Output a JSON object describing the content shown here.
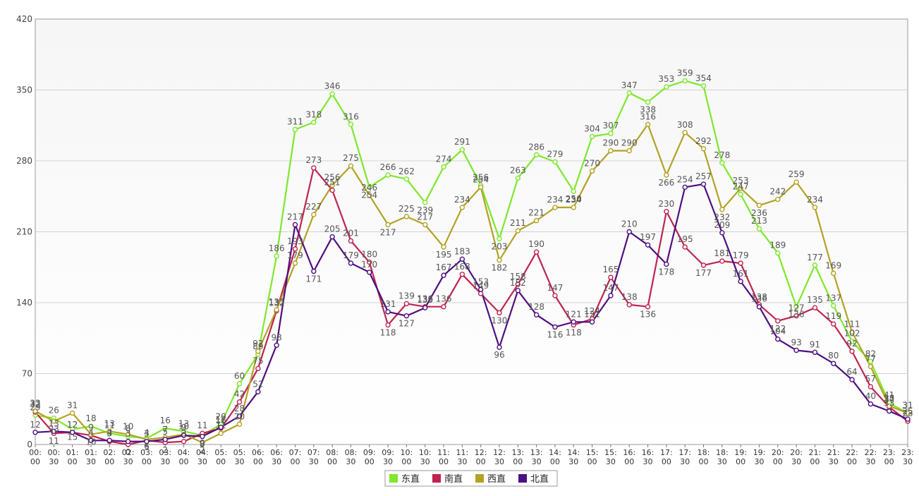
{
  "chart_data": {
    "type": "line",
    "title": "",
    "xlabel": "",
    "ylabel": "",
    "ylim": [
      0,
      420
    ],
    "yticks": [
      0,
      70,
      140,
      210,
      280,
      350,
      420
    ],
    "ytick_labels": [
      "0",
      "70",
      "140",
      "210",
      "280",
      "350",
      "420"
    ],
    "grid": "horizontal",
    "legend_position": "bottom-center",
    "categories": [
      {
        "top": "00:",
        "bottom": "00"
      },
      {
        "top": "00:",
        "bottom": "30"
      },
      {
        "top": "01:",
        "bottom": "00"
      },
      {
        "top": "01:",
        "bottom": "30"
      },
      {
        "top": "02:",
        "bottom": "00"
      },
      {
        "top": "02:",
        "bottom": "30"
      },
      {
        "top": "03:",
        "bottom": "00"
      },
      {
        "top": "03:",
        "bottom": "30"
      },
      {
        "top": "04:",
        "bottom": "00"
      },
      {
        "top": "04:",
        "bottom": "30"
      },
      {
        "top": "05:",
        "bottom": "00"
      },
      {
        "top": "05:",
        "bottom": "30"
      },
      {
        "top": "06:",
        "bottom": "00"
      },
      {
        "top": "06:",
        "bottom": "30"
      },
      {
        "top": "07:",
        "bottom": "00"
      },
      {
        "top": "07:",
        "bottom": "30"
      },
      {
        "top": "08:",
        "bottom": "00"
      },
      {
        "top": "08:",
        "bottom": "30"
      },
      {
        "top": "09:",
        "bottom": "00"
      },
      {
        "top": "09:",
        "bottom": "30"
      },
      {
        "top": "10:",
        "bottom": "00"
      },
      {
        "top": "10:",
        "bottom": "30"
      },
      {
        "top": "11:",
        "bottom": "00"
      },
      {
        "top": "11:",
        "bottom": "30"
      },
      {
        "top": "12:",
        "bottom": "00"
      },
      {
        "top": "12:",
        "bottom": "30"
      },
      {
        "top": "13:",
        "bottom": "00"
      },
      {
        "top": "13:",
        "bottom": "30"
      },
      {
        "top": "14:",
        "bottom": "00"
      },
      {
        "top": "14:",
        "bottom": "30"
      },
      {
        "top": "15:",
        "bottom": "00"
      },
      {
        "top": "15:",
        "bottom": "30"
      },
      {
        "top": "16:",
        "bottom": "00"
      },
      {
        "top": "16:",
        "bottom": "30"
      },
      {
        "top": "17:",
        "bottom": "00"
      },
      {
        "top": "17:",
        "bottom": "30"
      },
      {
        "top": "18:",
        "bottom": "00"
      },
      {
        "top": "18:",
        "bottom": "30"
      },
      {
        "top": "19:",
        "bottom": "00"
      },
      {
        "top": "19:",
        "bottom": "30"
      },
      {
        "top": "20:",
        "bottom": "00"
      },
      {
        "top": "20:",
        "bottom": "30"
      },
      {
        "top": "21:",
        "bottom": "00"
      },
      {
        "top": "21:",
        "bottom": "30"
      },
      {
        "top": "22:",
        "bottom": "00"
      },
      {
        "top": "22:",
        "bottom": "30"
      },
      {
        "top": "23:",
        "bottom": "00"
      },
      {
        "top": "23:",
        "bottom": "30"
      }
    ],
    "series": [
      {
        "name": "东直",
        "color": "#7ee82a",
        "values": [
          29,
          26,
          15,
          18,
          11,
          8,
          6,
          16,
          13,
          9,
          20,
          60,
          89,
          186,
          311,
          318,
          346,
          316,
          254,
          266,
          262,
          239,
          274,
          291,
          256,
          203,
          263,
          286,
          279,
          250,
          304,
          307,
          347,
          338,
          353,
          359,
          354,
          278,
          247,
          213,
          189,
          136,
          177,
          137,
          102,
          82,
          41,
          31
        ]
      },
      {
        "name": "南直",
        "color": "#c0234f",
        "values": [
          32,
          11,
          12,
          9,
          3,
          0,
          4,
          2,
          3,
          11,
          16,
          42,
          75,
          132,
          193,
          273,
          251,
          201,
          180,
          118,
          139,
          136,
          136,
          168,
          149,
          130,
          158,
          190,
          147,
          118,
          124,
          165,
          138,
          136,
          230,
          195,
          177,
          181,
          179,
          138,
          122,
          127,
          135,
          119,
          92,
          57,
          37,
          23
        ]
      },
      {
        "name": "西直",
        "color": "#b3a224",
        "values": [
          33,
          23,
          31,
          10,
          13,
          10,
          5,
          7,
          10,
          2,
          11,
          20,
          92,
          133,
          179,
          227,
          256,
          275,
          246,
          217,
          225,
          217,
          195,
          234,
          254,
          182,
          211,
          221,
          234,
          234,
          270,
          290,
          290,
          316,
          266,
          308,
          292,
          232,
          253,
          236,
          242,
          259,
          234,
          169,
          111,
          77,
          38,
          31
        ]
      },
      {
        "name": "北直",
        "color": "#4e0f80",
        "values": [
          12,
          13,
          12,
          4,
          4,
          3,
          3,
          5,
          9,
          8,
          17,
          28,
          52,
          98,
          217,
          171,
          205,
          179,
          170,
          131,
          127,
          135,
          167,
          183,
          153,
          96,
          152,
          128,
          116,
          121,
          121,
          147,
          210,
          197,
          178,
          254,
          257,
          209,
          161,
          136,
          104,
          93,
          91,
          80,
          64,
          40,
          33,
          25
        ]
      }
    ]
  }
}
